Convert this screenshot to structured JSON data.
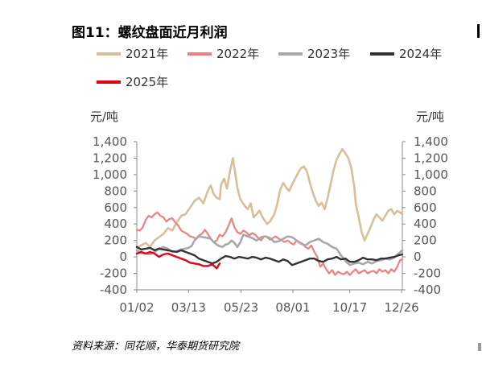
{
  "title": "图11：螺纹盘面近月利润",
  "source": "资料来源：同花顺，华泰期货研究院",
  "chart_data": {
    "type": "line",
    "y_unit_left": "元/吨",
    "y_unit_right": "元/吨",
    "ylim": [
      -400,
      1400
    ],
    "yticks": [
      "1,400",
      "1,200",
      "1,000",
      "800",
      "600",
      "400",
      "200",
      "0",
      "-200",
      "-400"
    ],
    "ytick_values": [
      1400,
      1200,
      1000,
      800,
      600,
      400,
      200,
      0,
      -200,
      -400
    ],
    "xlim_days": [
      0,
      359
    ],
    "xticks": [
      "01/02",
      "03/13",
      "05/23",
      "08/01",
      "10/17",
      "12/26"
    ],
    "xtick_days": [
      0,
      70,
      141,
      211,
      288,
      358
    ],
    "legend_position": "top",
    "series": [
      {
        "name": "2021年",
        "color": "#d6c09a",
        "width": 2.6,
        "x": [
          0,
          6,
          12,
          18,
          24,
          30,
          36,
          42,
          48,
          54,
          60,
          66,
          72,
          78,
          84,
          90,
          96,
          100,
          104,
          108,
          112,
          114,
          118,
          122,
          126,
          130,
          136,
          140,
          146,
          150,
          154,
          158,
          162,
          166,
          170,
          176,
          180,
          186,
          190,
          194,
          198,
          202,
          206,
          210,
          214,
          218,
          222,
          226,
          230,
          234,
          238,
          242,
          246,
          250,
          254,
          258,
          262,
          266,
          270,
          274,
          278,
          282,
          286,
          290,
          294,
          296,
          300,
          304,
          308,
          312,
          316,
          320,
          324,
          328,
          332,
          336,
          340,
          344,
          348,
          352,
          356,
          359
        ],
        "y": [
          110,
          140,
          170,
          120,
          200,
          240,
          280,
          350,
          320,
          420,
          500,
          520,
          600,
          680,
          720,
          650,
          800,
          870,
          760,
          720,
          700,
          880,
          950,
          830,
          1040,
          1200,
          840,
          700,
          620,
          580,
          650,
          480,
          520,
          560,
          480,
          400,
          430,
          520,
          650,
          820,
          900,
          840,
          800,
          880,
          950,
          1020,
          1080,
          1100,
          1040,
          900,
          780,
          680,
          620,
          660,
          580,
          720,
          880,
          1050,
          1180,
          1250,
          1310,
          1260,
          1200,
          1080,
          850,
          650,
          480,
          300,
          200,
          280,
          360,
          450,
          520,
          480,
          440,
          500,
          560,
          580,
          520,
          560,
          540,
          520
        ]
      },
      {
        "name": "2022年",
        "color": "#f08080",
        "width": 2.2,
        "x": [
          0,
          4,
          8,
          12,
          16,
          20,
          24,
          28,
          32,
          36,
          40,
          44,
          48,
          52,
          56,
          60,
          64,
          68,
          72,
          76,
          80,
          84,
          88,
          92,
          96,
          100,
          104,
          108,
          112,
          116,
          120,
          124,
          128,
          132,
          136,
          140,
          144,
          148,
          152,
          156,
          160,
          164,
          168,
          172,
          176,
          180,
          184,
          188,
          192,
          196,
          200,
          204,
          208,
          212,
          216,
          220,
          224,
          228,
          232,
          236,
          240,
          244,
          248,
          252,
          256,
          260,
          264,
          268,
          272,
          276,
          280,
          284,
          288,
          292,
          296,
          300,
          304,
          308,
          312,
          316,
          320,
          324,
          328,
          332,
          336,
          340,
          344,
          348,
          352,
          356,
          359
        ],
        "y": [
          330,
          320,
          360,
          450,
          500,
          480,
          520,
          540,
          500,
          480,
          430,
          460,
          470,
          420,
          380,
          320,
          300,
          280,
          250,
          240,
          220,
          260,
          280,
          330,
          280,
          220,
          180,
          200,
          270,
          250,
          300,
          380,
          470,
          360,
          300,
          280,
          320,
          300,
          260,
          290,
          270,
          230,
          200,
          250,
          240,
          210,
          230,
          250,
          220,
          200,
          180,
          200,
          170,
          150,
          200,
          180,
          160,
          120,
          100,
          140,
          60,
          0,
          -120,
          -80,
          -150,
          -200,
          -160,
          -220,
          -180,
          -200,
          -210,
          -180,
          -220,
          -180,
          -150,
          -200,
          -180,
          -160,
          -200,
          -180,
          -170,
          -200,
          -150,
          -180,
          -160,
          -200,
          -150,
          -180,
          -120,
          -40,
          -30
        ]
      },
      {
        "name": "2023年",
        "color": "#a8a8a8",
        "width": 2.6,
        "x": [
          0,
          6,
          12,
          18,
          24,
          30,
          36,
          42,
          48,
          54,
          60,
          66,
          70,
          74,
          78,
          84,
          90,
          96,
          100,
          104,
          108,
          112,
          116,
          120,
          124,
          128,
          132,
          136,
          140,
          144,
          150,
          156,
          162,
          168,
          174,
          180,
          186,
          192,
          198,
          204,
          210,
          216,
          222,
          228,
          234,
          240,
          246,
          252,
          258,
          264,
          270,
          276,
          282,
          288,
          294,
          300,
          306,
          312,
          318,
          324,
          330,
          336,
          342,
          348,
          354,
          359
        ],
        "y": [
          80,
          50,
          40,
          30,
          60,
          100,
          120,
          100,
          60,
          70,
          90,
          100,
          110,
          130,
          200,
          250,
          240,
          230,
          220,
          180,
          150,
          130,
          120,
          150,
          160,
          200,
          170,
          120,
          180,
          270,
          250,
          230,
          200,
          240,
          250,
          230,
          180,
          190,
          220,
          250,
          240,
          200,
          160,
          140,
          180,
          200,
          220,
          180,
          160,
          120,
          100,
          20,
          -50,
          -100,
          -80,
          -70,
          -90,
          -60,
          -80,
          -50,
          -40,
          -20,
          -30,
          -10,
          40,
          80
        ]
      },
      {
        "name": "2024年",
        "color": "#333333",
        "width": 2.4,
        "x": [
          0,
          6,
          12,
          18,
          24,
          30,
          36,
          42,
          48,
          54,
          60,
          66,
          72,
          78,
          84,
          90,
          96,
          102,
          108,
          114,
          120,
          126,
          132,
          138,
          144,
          150,
          156,
          162,
          168,
          174,
          180,
          186,
          192,
          198,
          204,
          210,
          216,
          222,
          228,
          234,
          240,
          246,
          252,
          258,
          264,
          270,
          276,
          282,
          288,
          294,
          300,
          306,
          312,
          318,
          324,
          330,
          336,
          342,
          348,
          354,
          359
        ],
        "y": [
          120,
          90,
          100,
          110,
          80,
          100,
          90,
          80,
          70,
          60,
          80,
          60,
          40,
          20,
          -20,
          -40,
          -60,
          -80,
          -60,
          -20,
          10,
          0,
          -20,
          0,
          -10,
          -20,
          0,
          -10,
          -30,
          -10,
          -20,
          -40,
          -60,
          -30,
          -50,
          -100,
          -80,
          -60,
          -40,
          -20,
          -20,
          -50,
          -60,
          -30,
          -20,
          0,
          -30,
          -20,
          -60,
          -60,
          -40,
          -10,
          -30,
          -30,
          -40,
          -20,
          -20,
          -10,
          0,
          20,
          30
        ]
      },
      {
        "name": "2025年",
        "color": "#e60012",
        "width": 2.4,
        "x": [
          0,
          6,
          12,
          18,
          24,
          30,
          36,
          42,
          48,
          54,
          60,
          66,
          72,
          78,
          84,
          90,
          96,
          102,
          108,
          112
        ],
        "y": [
          40,
          60,
          40,
          60,
          40,
          0,
          30,
          40,
          20,
          0,
          -20,
          -40,
          -70,
          -80,
          -90,
          -110,
          -110,
          -90,
          -140,
          -80
        ]
      }
    ]
  }
}
